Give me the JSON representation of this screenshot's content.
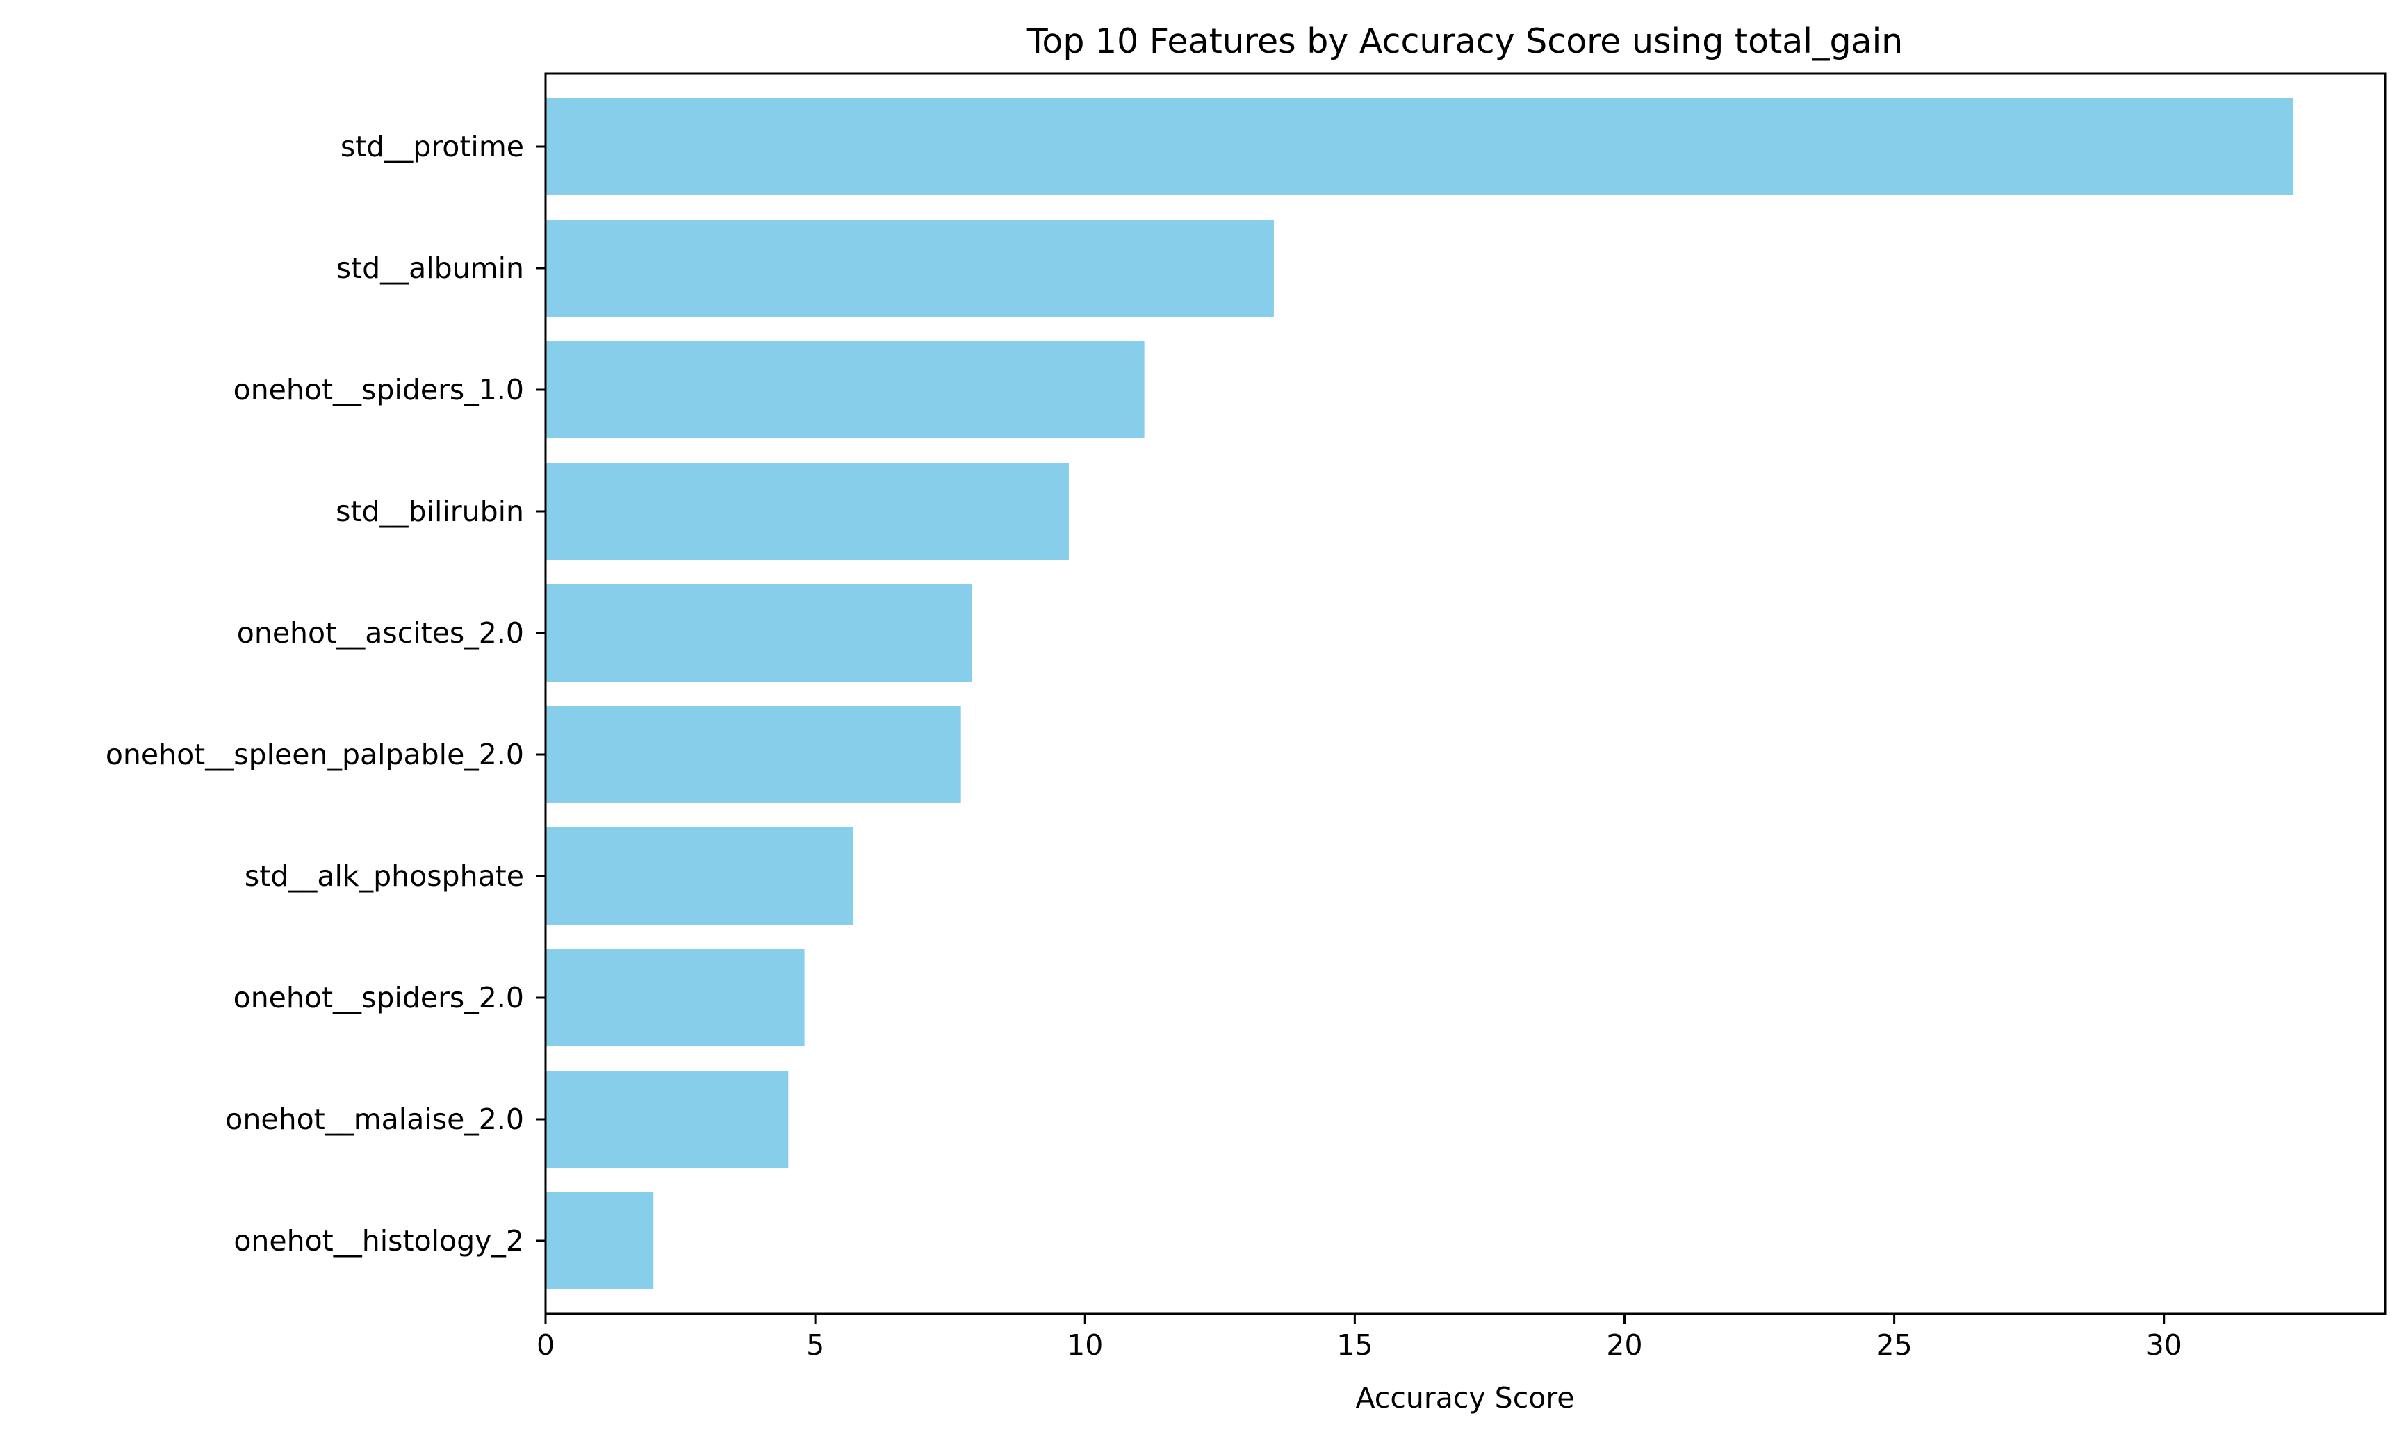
{
  "chart_data": {
    "type": "bar",
    "orientation": "horizontal",
    "title": "Top 10 Features by Accuracy Score using total_gain",
    "xlabel": "Accuracy Score",
    "ylabel": "",
    "categories": [
      "std__protime",
      "std__albumin",
      "onehot__spiders_1.0",
      "std__bilirubin",
      "onehot__ascites_2.0",
      "onehot__spleen_palpable_2.0",
      "std__alk_phosphate",
      "onehot__spiders_2.0",
      "onehot__malaise_2.0",
      "onehot__histology_2"
    ],
    "values": [
      32.4,
      13.5,
      11.1,
      9.7,
      7.9,
      7.7,
      5.7,
      4.8,
      4.5,
      2.0
    ],
    "xlim": [
      0,
      34.1
    ],
    "xticks": [
      0,
      5,
      10,
      15,
      20,
      25,
      30
    ],
    "grid": false,
    "colors": {
      "bar": "#87CEEB",
      "axis": "#000000",
      "background": "#FFFFFF"
    }
  }
}
